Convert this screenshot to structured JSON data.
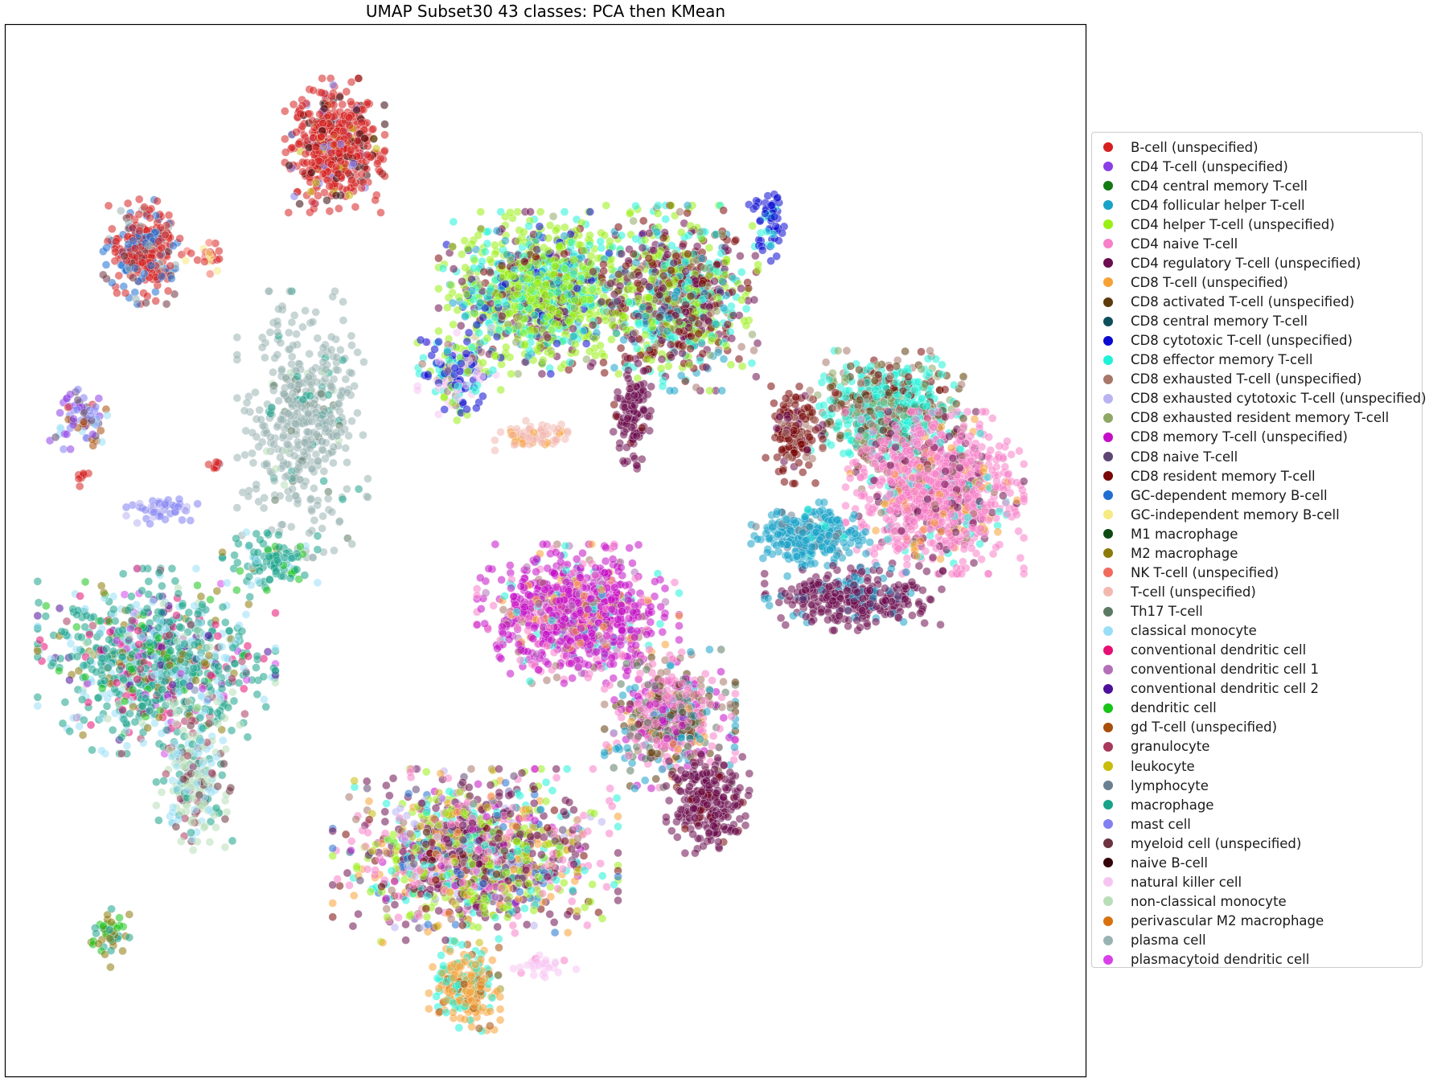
{
  "chart_data": {
    "type": "scatter",
    "title": "UMAP Subset30 43 classes: PCA then KMean",
    "xlabel": "",
    "ylabel": "",
    "axes_ticks": false,
    "legend_placement": "outside-right",
    "marker_alpha": 0.55,
    "x_range": [
      0,
      100
    ],
    "y_range": [
      0,
      100
    ],
    "classes": [
      {
        "name": "B-cell (unspecified)",
        "color": "#d62020"
      },
      {
        "name": "CD4 T-cell (unspecified)",
        "color": "#8a3ee6"
      },
      {
        "name": "CD4 central memory T-cell",
        "color": "#127a12"
      },
      {
        "name": "CD4 follicular helper T-cell",
        "color": "#17a2c8"
      },
      {
        "name": "CD4 helper T-cell (unspecified)",
        "color": "#99ef12"
      },
      {
        "name": "CD4 naive T-cell",
        "color": "#f77fc8"
      },
      {
        "name": "CD4 regulatory T-cell (unspecified)",
        "color": "#6b0d4f"
      },
      {
        "name": "CD8 T-cell (unspecified)",
        "color": "#f7a135"
      },
      {
        "name": "CD8 activated T-cell (unspecified)",
        "color": "#5c3a0d"
      },
      {
        "name": "CD8 central memory T-cell",
        "color": "#0e4f5c"
      },
      {
        "name": "CD8 cytotoxic T-cell (unspecified)",
        "color": "#0a0ad1"
      },
      {
        "name": "CD8 effector memory T-cell",
        "color": "#1ff2d9"
      },
      {
        "name": "CD8 exhausted T-cell (unspecified)",
        "color": "#a8766a"
      },
      {
        "name": "CD8 exhausted cytotoxic T-cell (unspecified)",
        "color": "#b9b3f2"
      },
      {
        "name": "CD8 exhausted resident memory T-cell",
        "color": "#8fa866"
      },
      {
        "name": "CD8 memory T-cell (unspecified)",
        "color": "#c40fc7"
      },
      {
        "name": "CD8 naive T-cell",
        "color": "#5e4673"
      },
      {
        "name": "CD8 resident memory T-cell",
        "color": "#7a0808"
      },
      {
        "name": "GC-dependent memory B-cell",
        "color": "#1f6fd1"
      },
      {
        "name": "GC-independent memory B-cell",
        "color": "#f7ea80"
      },
      {
        "name": "M1 macrophage",
        "color": "#0d4a12"
      },
      {
        "name": "M2 macrophage",
        "color": "#8c7a0a"
      },
      {
        "name": "NK T-cell (unspecified)",
        "color": "#f26a5c"
      },
      {
        "name": "T-cell (unspecified)",
        "color": "#f2b8b0"
      },
      {
        "name": "Th17 T-cell",
        "color": "#5c7a63"
      },
      {
        "name": "classical monocyte",
        "color": "#99def7"
      },
      {
        "name": "conventional dendritic cell",
        "color": "#e60f73"
      },
      {
        "name": "conventional dendritic cell 1",
        "color": "#b36fb8"
      },
      {
        "name": "conventional dendritic cell 2",
        "color": "#4d0f99"
      },
      {
        "name": "dendritic cell",
        "color": "#17c417"
      },
      {
        "name": "gd T-cell (unspecified)",
        "color": "#a84d0a"
      },
      {
        "name": "granulocyte",
        "color": "#a8385c"
      },
      {
        "name": "leukocyte",
        "color": "#c7bd0a"
      },
      {
        "name": "lymphocyte",
        "color": "#6b808f"
      },
      {
        "name": "macrophage",
        "color": "#17a38a"
      },
      {
        "name": "mast cell",
        "color": "#8080f2"
      },
      {
        "name": "myeloid cell (unspecified)",
        "color": "#6b3340"
      },
      {
        "name": "naive B-cell",
        "color": "#330308"
      },
      {
        "name": "natural killer cell",
        "color": "#f7c4f2"
      },
      {
        "name": "non-classical monocyte",
        "color": "#b8deb8"
      },
      {
        "name": "perivascular M2 macrophage",
        "color": "#d9700d"
      },
      {
        "name": "plasma cell",
        "color": "#99b3b3"
      },
      {
        "name": "plasmacytoid dendritic cell",
        "color": "#d940ea"
      }
    ],
    "clusters": [
      {
        "x": 30.5,
        "y": 88.5,
        "rx": 4.2,
        "ry": 5.8,
        "n": 520,
        "mix": [
          [
            0,
            0.82
          ],
          [
            37,
            0.1
          ],
          [
            35,
            0.04
          ],
          [
            32,
            0.04
          ]
        ]
      },
      {
        "x": 12.8,
        "y": 78.5,
        "rx": 3.4,
        "ry": 4.6,
        "n": 300,
        "mix": [
          [
            0,
            0.55
          ],
          [
            18,
            0.3
          ],
          [
            41,
            0.08
          ],
          [
            36,
            0.07
          ]
        ]
      },
      {
        "x": 18.5,
        "y": 78.0,
        "rx": 1.8,
        "ry": 1.9,
        "n": 22,
        "mix": [
          [
            0,
            0.55
          ],
          [
            19,
            0.25
          ],
          [
            22,
            0.2
          ]
        ]
      },
      {
        "x": 7.0,
        "y": 62.5,
        "rx": 2.6,
        "ry": 2.6,
        "n": 70,
        "mix": [
          [
            1,
            0.3
          ],
          [
            16,
            0.2
          ],
          [
            25,
            0.15
          ],
          [
            35,
            0.15
          ],
          [
            30,
            0.1
          ],
          [
            0,
            0.1
          ]
        ]
      },
      {
        "x": 7.2,
        "y": 57.0,
        "rx": 0.6,
        "ry": 0.9,
        "n": 8,
        "mix": [
          [
            0,
            1.0
          ]
        ]
      },
      {
        "x": 19.5,
        "y": 58.0,
        "rx": 1.2,
        "ry": 0.5,
        "n": 8,
        "mix": [
          [
            0,
            0.8
          ],
          [
            31,
            0.2
          ]
        ]
      },
      {
        "x": 27.5,
        "y": 62.0,
        "rx": 5.5,
        "ry": 11.5,
        "n": 450,
        "mix": [
          [
            41,
            0.88
          ],
          [
            34,
            0.06
          ],
          [
            24,
            0.03
          ],
          [
            39,
            0.03
          ]
        ]
      },
      {
        "x": 14.5,
        "y": 54.0,
        "rx": 3.0,
        "ry": 1.4,
        "n": 45,
        "mix": [
          [
            35,
            0.8
          ],
          [
            13,
            0.2
          ]
        ]
      },
      {
        "x": 14.0,
        "y": 39.5,
        "rx": 10.0,
        "ry": 8.0,
        "n": 900,
        "mix": [
          [
            34,
            0.45
          ],
          [
            25,
            0.18
          ],
          [
            26,
            0.08
          ],
          [
            21,
            0.07
          ],
          [
            28,
            0.05
          ],
          [
            29,
            0.04
          ],
          [
            42,
            0.04
          ],
          [
            31,
            0.04
          ],
          [
            39,
            0.05
          ]
        ]
      },
      {
        "x": 17.5,
        "y": 28.5,
        "rx": 3.2,
        "ry": 6.5,
        "n": 260,
        "mix": [
          [
            39,
            0.45
          ],
          [
            25,
            0.25
          ],
          [
            36,
            0.1
          ],
          [
            31,
            0.1
          ],
          [
            34,
            0.1
          ]
        ]
      },
      {
        "x": 24.5,
        "y": 49.0,
        "rx": 4.0,
        "ry": 2.5,
        "n": 100,
        "mix": [
          [
            34,
            0.7
          ],
          [
            25,
            0.15
          ],
          [
            29,
            0.1
          ],
          [
            21,
            0.05
          ]
        ]
      },
      {
        "x": 9.5,
        "y": 13.5,
        "rx": 1.8,
        "ry": 2.8,
        "n": 45,
        "mix": [
          [
            21,
            0.5
          ],
          [
            34,
            0.3
          ],
          [
            29,
            0.2
          ]
        ]
      },
      {
        "x": 50.0,
        "y": 74.5,
        "rx": 9.0,
        "ry": 7.0,
        "n": 1100,
        "mix": [
          [
            4,
            0.45
          ],
          [
            11,
            0.2
          ],
          [
            3,
            0.1
          ],
          [
            6,
            0.1
          ],
          [
            10,
            0.05
          ],
          [
            17,
            0.05
          ],
          [
            14,
            0.05
          ]
        ]
      },
      {
        "x": 62.5,
        "y": 74.0,
        "rx": 6.5,
        "ry": 8.0,
        "n": 800,
        "mix": [
          [
            6,
            0.25
          ],
          [
            17,
            0.2
          ],
          [
            4,
            0.2
          ],
          [
            11,
            0.15
          ],
          [
            3,
            0.1
          ],
          [
            12,
            0.05
          ],
          [
            14,
            0.05
          ]
        ]
      },
      {
        "x": 42.0,
        "y": 67.0,
        "rx": 3.5,
        "ry": 4.2,
        "n": 200,
        "mix": [
          [
            10,
            0.3
          ],
          [
            11,
            0.2
          ],
          [
            38,
            0.25
          ],
          [
            4,
            0.15
          ],
          [
            12,
            0.1
          ]
        ]
      },
      {
        "x": 70.5,
        "y": 81.0,
        "rx": 1.8,
        "ry": 3.2,
        "n": 60,
        "mix": [
          [
            10,
            0.85
          ],
          [
            11,
            0.15
          ]
        ]
      },
      {
        "x": 58.0,
        "y": 63.0,
        "rx": 1.8,
        "ry": 4.8,
        "n": 120,
        "mix": [
          [
            6,
            0.9
          ],
          [
            17,
            0.1
          ]
        ]
      },
      {
        "x": 49.0,
        "y": 61.0,
        "rx": 3.5,
        "ry": 1.6,
        "n": 70,
        "mix": [
          [
            23,
            0.8
          ],
          [
            7,
            0.2
          ]
        ]
      },
      {
        "x": 81.5,
        "y": 63.5,
        "rx": 6.5,
        "ry": 5.0,
        "n": 650,
        "mix": [
          [
            11,
            0.45
          ],
          [
            8,
            0.2
          ],
          [
            12,
            0.15
          ],
          [
            17,
            0.1
          ],
          [
            14,
            0.1
          ]
        ]
      },
      {
        "x": 73.0,
        "y": 61.0,
        "rx": 2.4,
        "ry": 4.2,
        "n": 150,
        "mix": [
          [
            17,
            0.7
          ],
          [
            12,
            0.2
          ],
          [
            6,
            0.1
          ]
        ]
      },
      {
        "x": 86.0,
        "y": 55.5,
        "rx": 7.5,
        "ry": 7.0,
        "n": 1100,
        "mix": [
          [
            5,
            0.7
          ],
          [
            7,
            0.1
          ],
          [
            6,
            0.1
          ],
          [
            12,
            0.05
          ],
          [
            11,
            0.05
          ]
        ]
      },
      {
        "x": 74.5,
        "y": 51.5,
        "rx": 5.0,
        "ry": 2.8,
        "n": 280,
        "mix": [
          [
            3,
            0.85
          ],
          [
            33,
            0.1
          ],
          [
            11,
            0.05
          ]
        ]
      },
      {
        "x": 78.5,
        "y": 45.5,
        "rx": 7.5,
        "ry": 2.8,
        "n": 340,
        "mix": [
          [
            6,
            0.85
          ],
          [
            3,
            0.15
          ]
        ]
      },
      {
        "x": 53.0,
        "y": 44.0,
        "rx": 8.5,
        "ry": 6.0,
        "n": 900,
        "mix": [
          [
            15,
            0.65
          ],
          [
            5,
            0.12
          ],
          [
            11,
            0.06
          ],
          [
            12,
            0.06
          ],
          [
            27,
            0.06
          ],
          [
            7,
            0.05
          ]
        ]
      },
      {
        "x": 61.5,
        "y": 34.0,
        "rx": 5.5,
        "ry": 6.0,
        "n": 550,
        "mix": [
          [
            5,
            0.3
          ],
          [
            24,
            0.15
          ],
          [
            8,
            0.15
          ],
          [
            3,
            0.15
          ],
          [
            12,
            0.1
          ],
          [
            7,
            0.05
          ],
          [
            15,
            0.1
          ]
        ]
      },
      {
        "x": 65.0,
        "y": 26.0,
        "rx": 3.5,
        "ry": 4.5,
        "n": 250,
        "mix": [
          [
            6,
            0.9
          ],
          [
            17,
            0.1
          ]
        ]
      },
      {
        "x": 43.5,
        "y": 21.0,
        "rx": 12.0,
        "ry": 7.5,
        "n": 1300,
        "mix": [
          [
            6,
            0.22
          ],
          [
            4,
            0.15
          ],
          [
            5,
            0.15
          ],
          [
            11,
            0.1
          ],
          [
            7,
            0.08
          ],
          [
            18,
            0.05
          ],
          [
            12,
            0.05
          ],
          [
            16,
            0.05
          ],
          [
            17,
            0.05
          ],
          [
            32,
            0.03
          ],
          [
            13,
            0.04
          ],
          [
            15,
            0.03
          ]
        ]
      },
      {
        "x": 42.5,
        "y": 8.5,
        "rx": 3.0,
        "ry": 4.0,
        "n": 260,
        "mix": [
          [
            7,
            0.6
          ],
          [
            11,
            0.3
          ],
          [
            30,
            0.1
          ]
        ]
      },
      {
        "x": 50.0,
        "y": 10.5,
        "rx": 2.8,
        "ry": 1.0,
        "n": 30,
        "mix": [
          [
            38,
            0.9
          ],
          [
            5,
            0.1
          ]
        ]
      }
    ]
  }
}
